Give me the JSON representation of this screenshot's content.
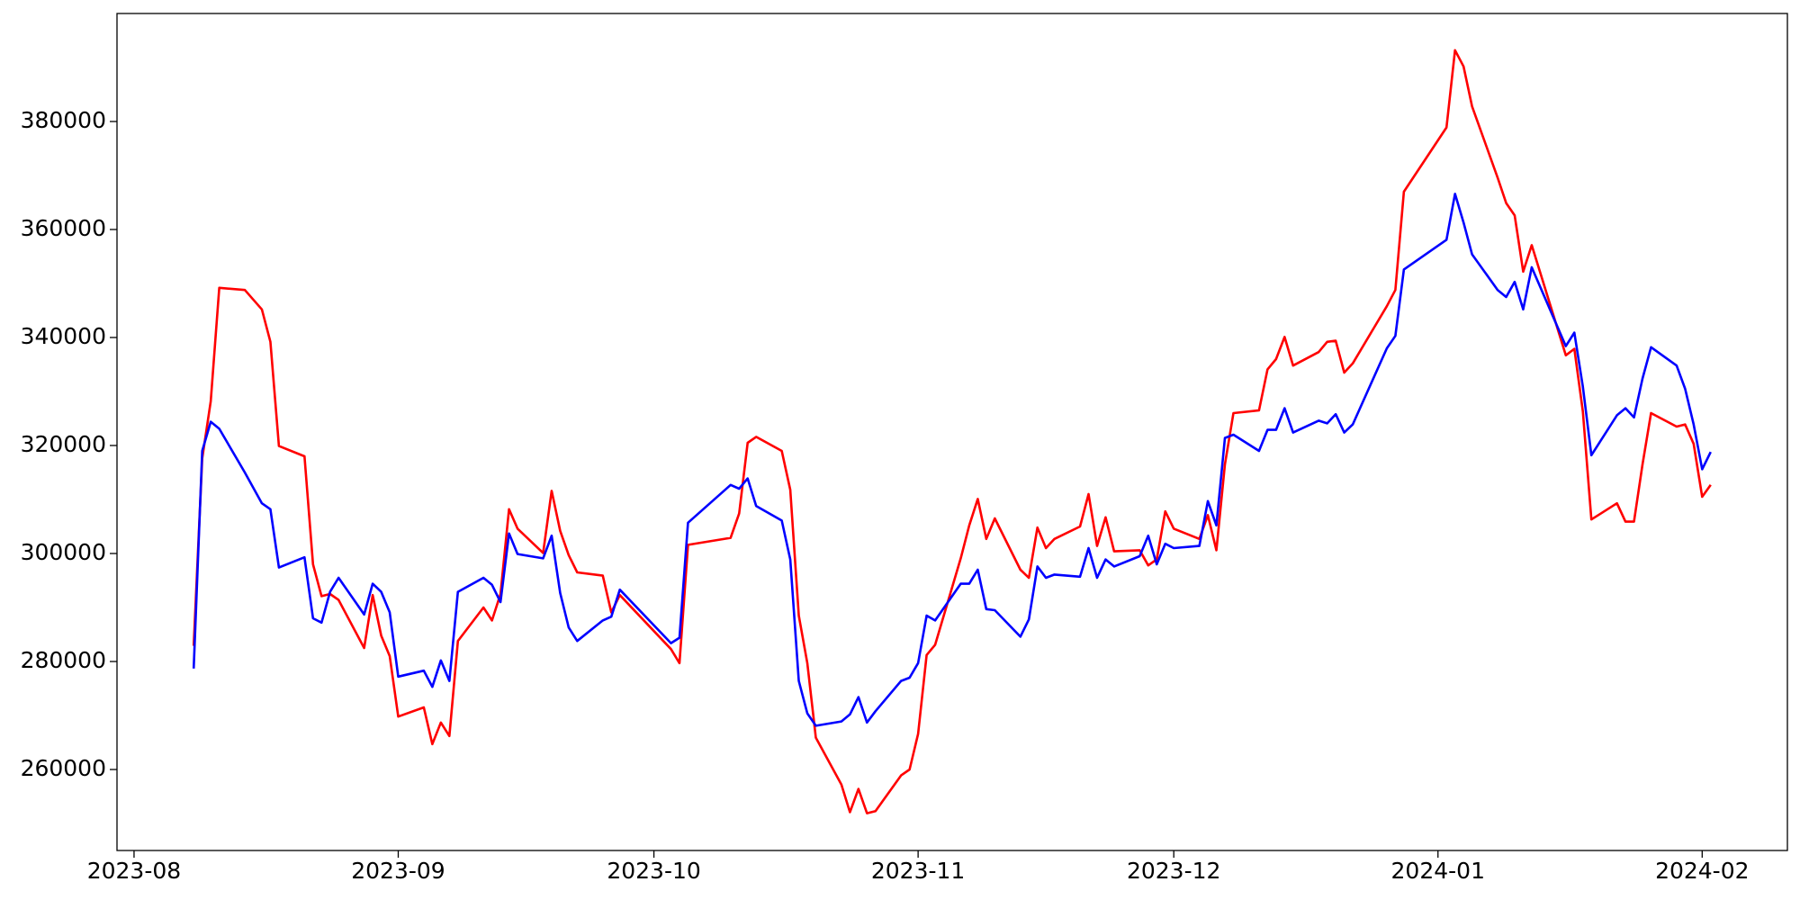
{
  "chart_data": {
    "type": "line",
    "x": [
      "2023-08-08",
      "2023-08-09",
      "2023-08-10",
      "2023-08-11",
      "2023-08-14",
      "2023-08-16",
      "2023-08-17",
      "2023-08-18",
      "2023-08-21",
      "2023-08-22",
      "2023-08-23",
      "2023-08-24",
      "2023-08-25",
      "2023-08-28",
      "2023-08-29",
      "2023-08-30",
      "2023-08-31",
      "2023-09-01",
      "2023-09-04",
      "2023-09-05",
      "2023-09-06",
      "2023-09-07",
      "2023-09-08",
      "2023-09-11",
      "2023-09-12",
      "2023-09-13",
      "2023-09-14",
      "2023-09-15",
      "2023-09-18",
      "2023-09-19",
      "2023-09-20",
      "2023-09-21",
      "2023-09-22",
      "2023-09-25",
      "2023-09-26",
      "2023-09-27",
      "2023-10-03",
      "2023-10-04",
      "2023-10-05",
      "2023-10-10",
      "2023-10-11",
      "2023-10-12",
      "2023-10-13",
      "2023-10-16",
      "2023-10-17",
      "2023-10-18",
      "2023-10-19",
      "2023-10-20",
      "2023-10-23",
      "2023-10-24",
      "2023-10-25",
      "2023-10-26",
      "2023-10-27",
      "2023-10-30",
      "2023-10-31",
      "2023-11-01",
      "2023-11-02",
      "2023-11-03",
      "2023-11-06",
      "2023-11-07",
      "2023-11-08",
      "2023-11-09",
      "2023-11-10",
      "2023-11-13",
      "2023-11-14",
      "2023-11-15",
      "2023-11-16",
      "2023-11-17",
      "2023-11-20",
      "2023-11-21",
      "2023-11-22",
      "2023-11-23",
      "2023-11-24",
      "2023-11-27",
      "2023-11-28",
      "2023-11-29",
      "2023-11-30",
      "2023-12-01",
      "2023-12-04",
      "2023-12-05",
      "2023-12-06",
      "2023-12-07",
      "2023-12-08",
      "2023-12-11",
      "2023-12-12",
      "2023-12-13",
      "2023-12-14",
      "2023-12-15",
      "2023-12-18",
      "2023-12-19",
      "2023-12-20",
      "2023-12-21",
      "2023-12-22",
      "2023-12-26",
      "2023-12-27",
      "2023-12-28",
      "2024-01-02",
      "2024-01-03",
      "2024-01-04",
      "2024-01-05",
      "2024-01-08",
      "2024-01-09",
      "2024-01-10",
      "2024-01-11",
      "2024-01-12",
      "2024-01-16",
      "2024-01-17",
      "2024-01-18",
      "2024-01-19",
      "2024-01-22",
      "2024-01-23",
      "2024-01-24",
      "2024-01-25",
      "2024-01-26",
      "2024-01-29",
      "2024-01-30",
      "2024-01-31",
      "2024-02-01",
      "2024-02-02"
    ],
    "series": [
      {
        "color": "#ff0000",
        "values": [
          282900,
          317600,
          328200,
          349200,
          348800,
          345200,
          339200,
          319900,
          318000,
          298000,
          292100,
          292500,
          291400,
          282500,
          292300,
          284800,
          281000,
          269800,
          271500,
          264700,
          268700,
          266200,
          283800,
          290000,
          287600,
          292500,
          308200,
          304600,
          300100,
          311600,
          304200,
          299700,
          296500,
          295900,
          289100,
          292300,
          282300,
          279700,
          301600,
          302900,
          307400,
          320500,
          321600,
          319000,
          311800,
          288500,
          279700,
          265900,
          257200,
          252100,
          256400,
          251900,
          252300,
          258900,
          260000,
          266600,
          281200,
          283100,
          299100,
          305200,
          310100,
          302700,
          306500,
          297000,
          295500,
          304800,
          301000,
          302700,
          305000,
          311000,
          301400,
          306700,
          300400,
          300600,
          297800,
          298900,
          307800,
          304600,
          302700,
          307100,
          300600,
          316500,
          326000,
          326500,
          334100,
          336000,
          340100,
          334800,
          337300,
          339200,
          339400,
          333500,
          335200,
          345800,
          348800,
          367000,
          378900,
          393200,
          390200,
          382800,
          369600,
          364900,
          362600,
          352200,
          357100,
          336700,
          337900,
          326300,
          306300,
          309300,
          305900,
          305900,
          316500,
          326000,
          323500,
          323900,
          320300,
          310500,
          312700
        ]
      },
      {
        "color": "#0000ff",
        "values": [
          278700,
          319000,
          324400,
          323100,
          315000,
          309300,
          308200,
          297400,
          299300,
          288000,
          287200,
          292900,
          295500,
          288700,
          294400,
          292900,
          289100,
          277200,
          278300,
          275300,
          280200,
          276400,
          292900,
          295500,
          294200,
          291000,
          303700,
          299900,
          299100,
          303300,
          292700,
          286300,
          283800,
          287600,
          288300,
          293300,
          283400,
          284400,
          305700,
          312700,
          312000,
          313900,
          308800,
          306100,
          298900,
          276400,
          270400,
          268100,
          268900,
          270200,
          273400,
          268700,
          270800,
          276400,
          277000,
          279700,
          288500,
          287600,
          294400,
          294400,
          297000,
          289700,
          289500,
          284600,
          287800,
          297600,
          295500,
          296100,
          295700,
          301000,
          295500,
          298900,
          297600,
          299500,
          303300,
          298000,
          301800,
          301000,
          301400,
          309700,
          305200,
          321400,
          322000,
          319000,
          322900,
          322900,
          326900,
          322400,
          324600,
          324100,
          325800,
          322400,
          323900,
          338000,
          340300,
          352600,
          358100,
          366600,
          361300,
          355400,
          348800,
          347500,
          350300,
          345200,
          353000,
          338400,
          340900,
          330900,
          318200,
          325600,
          326900,
          325200,
          332400,
          338200,
          334800,
          330500,
          323900,
          315600,
          318800
        ]
      }
    ],
    "xlim": [
      "2023-07-30",
      "2024-02-11"
    ],
    "xticks": [
      {
        "value": "2023-08-01",
        "label": "2023-08"
      },
      {
        "value": "2023-09-01",
        "label": "2023-09"
      },
      {
        "value": "2023-10-01",
        "label": "2023-10"
      },
      {
        "value": "2023-11-01",
        "label": "2023-11"
      },
      {
        "value": "2023-12-01",
        "label": "2023-12"
      },
      {
        "value": "2024-01-01",
        "label": "2024-01"
      },
      {
        "value": "2024-02-01",
        "label": "2024-02"
      }
    ],
    "ylim": [
      245000,
      400000
    ],
    "yticks": [
      260000,
      280000,
      300000,
      320000,
      340000,
      360000,
      380000
    ],
    "grid": false
  }
}
